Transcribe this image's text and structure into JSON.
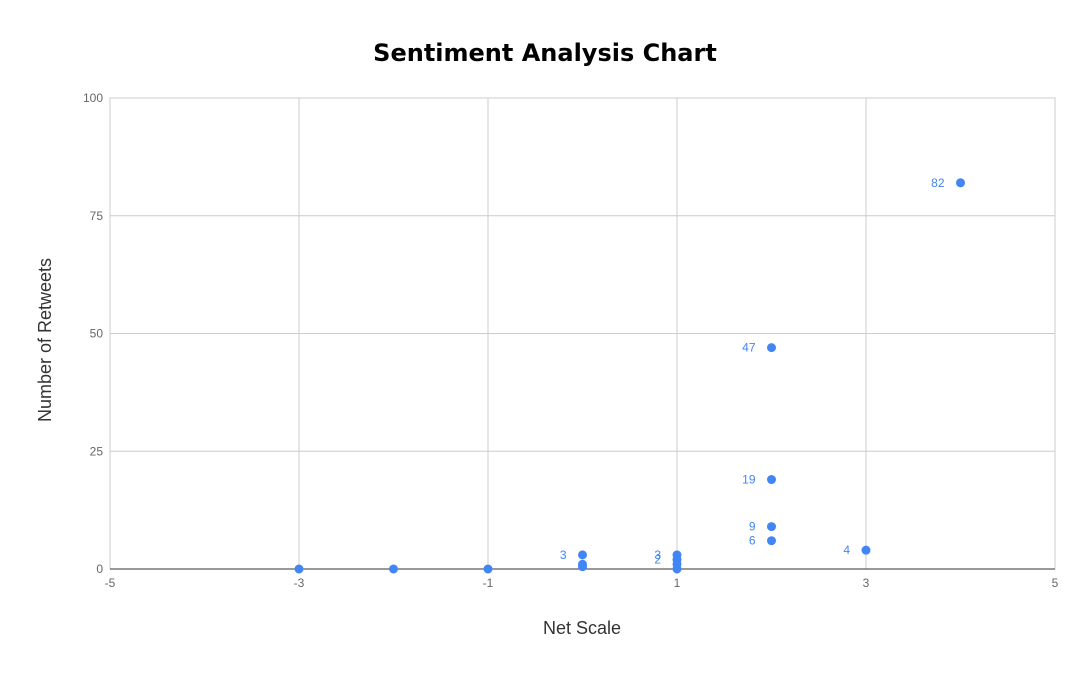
{
  "chart_data": {
    "type": "scatter",
    "title": "Sentiment Analysis Chart",
    "xlabel": "Net Scale",
    "ylabel": "Number of Retweets",
    "xlim": [
      -5,
      5
    ],
    "ylim": [
      0,
      100
    ],
    "x_ticks": [
      "-5",
      "-3",
      "-1",
      "1",
      "3",
      "5"
    ],
    "y_ticks": [
      "0",
      "25",
      "50",
      "75",
      "100"
    ],
    "grid": true,
    "point_color": "#4285f4",
    "points": [
      {
        "x": 4,
        "y": 82,
        "label": "82"
      },
      {
        "x": 2,
        "y": 47,
        "label": "47"
      },
      {
        "x": 2,
        "y": 19,
        "label": "19"
      },
      {
        "x": 2,
        "y": 9,
        "label": "9"
      },
      {
        "x": 2,
        "y": 6,
        "label": "6"
      },
      {
        "x": 3,
        "y": 4,
        "label": "4"
      },
      {
        "x": 0,
        "y": 3,
        "label": "3"
      },
      {
        "x": 0,
        "y": 1,
        "label": ""
      },
      {
        "x": 0,
        "y": 0.5,
        "label": ""
      },
      {
        "x": 1,
        "y": 3,
        "label": "3"
      },
      {
        "x": 1,
        "y": 2,
        "label": "2"
      },
      {
        "x": 1,
        "y": 1,
        "label": ""
      },
      {
        "x": 1,
        "y": 0,
        "label": ""
      },
      {
        "x": -3,
        "y": 0,
        "label": ""
      },
      {
        "x": -2,
        "y": 0,
        "label": ""
      },
      {
        "x": -1,
        "y": 0,
        "label": ""
      }
    ]
  }
}
